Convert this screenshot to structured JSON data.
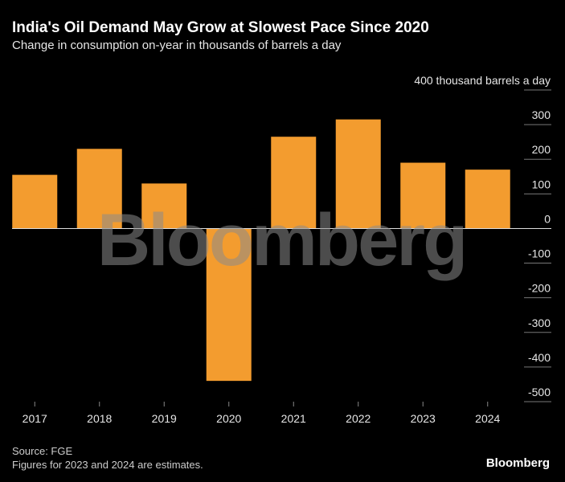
{
  "chart_data": {
    "type": "bar",
    "title": "India's Oil Demand May Grow at Slowest Pace Since 2020",
    "subtitle": "Change in consumption on-year in thousands of barrels a day",
    "categories": [
      "2017",
      "2018",
      "2019",
      "2020",
      "2021",
      "2022",
      "2023",
      "2024"
    ],
    "values": [
      155,
      230,
      130,
      -440,
      265,
      315,
      190,
      170
    ],
    "color": "#f39c2f",
    "ylim": [
      -500,
      400
    ],
    "yticks": [
      -500,
      -400,
      -300,
      -200,
      -100,
      0,
      100,
      200,
      300,
      {
        "value": 400,
        "label": "400 thousand barrels a day"
      }
    ],
    "grid": true,
    "source": "Source: FGE",
    "note": "Figures for 2023 and 2024 are estimates.",
    "watermark": "Bloomberg",
    "logo": "Bloomberg"
  }
}
